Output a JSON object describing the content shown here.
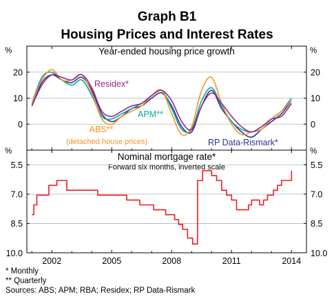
{
  "figure": {
    "title": "Graph B1",
    "subtitle": "Housing Prices and Interest Rates",
    "notes": [
      "*    Monthly",
      "**   Quarterly",
      "Sources: ABS; APM; RBA; Residex; RP Data-Rismark"
    ]
  },
  "chart_data": [
    {
      "type": "line",
      "title": "Year-ended housing price growth",
      "y_unit": "%",
      "ylim": [
        -10,
        30
      ],
      "yticks": [
        0,
        10,
        20
      ],
      "ytick_labels": [
        "0",
        "10",
        "20"
      ],
      "xlim": [
        2000.75,
        2014.75
      ],
      "xticks": [
        2002,
        2005,
        2008,
        2011,
        2014
      ],
      "xtick_labels": [
        "2002",
        "2005",
        "2008",
        "2011",
        "2014"
      ],
      "grid": "horizontal",
      "series": [
        {
          "name": "RP Data-Rismark*",
          "color": "#2e3192",
          "x": [
            2001.0,
            2001.5,
            2002.0,
            2002.5,
            2003.0,
            2003.5,
            2004.0,
            2004.5,
            2005.0,
            2005.5,
            2006.0,
            2006.5,
            2007.0,
            2007.5,
            2008.0,
            2008.5,
            2009.0,
            2009.5,
            2010.0,
            2010.5,
            2011.0,
            2011.5,
            2012.0,
            2012.5,
            2013.0,
            2013.5,
            2014.0
          ],
          "y": [
            7,
            16,
            19,
            17,
            16,
            18,
            13,
            4,
            1,
            3,
            6,
            7,
            10,
            12,
            7,
            -1,
            -3,
            7,
            13,
            6,
            1,
            -3,
            -5,
            -2,
            1,
            4,
            9
          ]
        },
        {
          "name": "APM**",
          "color": "#00a99d",
          "x": [
            2001.0,
            2001.5,
            2002.0,
            2002.5,
            2003.0,
            2003.5,
            2004.0,
            2004.5,
            2005.0,
            2005.5,
            2006.0,
            2006.5,
            2007.0,
            2007.5,
            2008.0,
            2008.5,
            2009.0,
            2009.5,
            2010.0,
            2010.5,
            2011.0,
            2011.5,
            2012.0,
            2012.5,
            2013.0,
            2013.5,
            2014.0
          ],
          "y": [
            8,
            18,
            20,
            17,
            15,
            17,
            11,
            3,
            2,
            4,
            6,
            8,
            11,
            13,
            6,
            -2,
            -2,
            9,
            14,
            7,
            1,
            -2,
            -3,
            -1,
            2,
            5,
            10
          ]
        },
        {
          "name": "ABS**",
          "sublabel": "(detached house prices)",
          "color": "#f7941d",
          "x": [
            2001.0,
            2001.5,
            2002.0,
            2002.5,
            2003.0,
            2003.5,
            2004.0,
            2004.5,
            2005.0,
            2005.5,
            2006.0,
            2006.5,
            2007.0,
            2007.5,
            2008.0,
            2008.5,
            2009.0,
            2009.5,
            2010.0,
            2010.5,
            2011.0,
            2011.5,
            2012.0,
            2012.5,
            2013.0,
            2013.5,
            2014.0
          ],
          "y": [
            8,
            17,
            21,
            17,
            17,
            19,
            12,
            2,
            0,
            3,
            5,
            7,
            11,
            13,
            4,
            -4,
            -1,
            13,
            18,
            8,
            0,
            -4,
            -3,
            -2,
            2,
            5,
            9
          ]
        },
        {
          "name": "Residex*",
          "color": "#92278f",
          "x": [
            2001.0,
            2001.5,
            2002.0,
            2002.5,
            2003.0,
            2003.5,
            2004.0,
            2004.5,
            2005.0,
            2005.5,
            2006.0,
            2006.5,
            2007.0,
            2007.5,
            2008.0,
            2008.5,
            2009.0,
            2009.5,
            2010.0,
            2010.5,
            2011.0,
            2011.5,
            2012.0,
            2012.5,
            2013.0,
            2013.5,
            2014.0
          ],
          "y": [
            7,
            15,
            19,
            18,
            17,
            19,
            14,
            5,
            3,
            5,
            7,
            8,
            11,
            13,
            9,
            1,
            -2,
            7,
            12,
            8,
            3,
            -1,
            -3,
            -1,
            2,
            3,
            8
          ]
        }
      ]
    },
    {
      "type": "line",
      "title": "Nominal mortgage rate*",
      "subtitle": "Forward six months, inverted scale",
      "y_unit": "%",
      "y_inverted": true,
      "ylim": [
        10.0,
        4.75
      ],
      "yticks": [
        5.5,
        7.0,
        8.5,
        10.0
      ],
      "ytick_labels": [
        "5.5",
        "7.0",
        "8.5",
        "10.0"
      ],
      "xlim": [
        2000.75,
        2014.75
      ],
      "xticks": [
        2002,
        2005,
        2008,
        2011,
        2014
      ],
      "xtick_labels": [
        "2002",
        "2005",
        "2008",
        "2011",
        "2014"
      ],
      "grid": "horizontal",
      "series": [
        {
          "name": "",
          "color": "#ed1c24",
          "step": true,
          "x": [
            2001.0,
            2001.1,
            2001.25,
            2001.6,
            2001.85,
            2002.25,
            2002.45,
            2002.75,
            2003.4,
            2003.9,
            2004.3,
            2005.5,
            2005.75,
            2006.1,
            2006.4,
            2006.7,
            2007.1,
            2007.4,
            2007.7,
            2007.9,
            2008.15,
            2008.35,
            2008.55,
            2008.8,
            2009.05,
            2009.3,
            2009.55,
            2009.8,
            2010.0,
            2010.25,
            2010.5,
            2010.75,
            2011.0,
            2011.25,
            2011.6,
            2011.85,
            2012.0,
            2012.2,
            2012.4,
            2012.6,
            2012.8,
            2013.1,
            2013.3,
            2013.5,
            2013.75,
            2014.0
          ],
          "y": [
            8.05,
            7.55,
            7.05,
            7.05,
            6.55,
            6.3,
            6.3,
            6.8,
            6.8,
            6.8,
            7.05,
            7.05,
            7.3,
            7.3,
            7.55,
            7.55,
            7.8,
            7.8,
            8.05,
            8.05,
            8.3,
            8.55,
            8.8,
            9.25,
            9.55,
            6.3,
            5.8,
            5.8,
            6.05,
            6.3,
            6.8,
            7.05,
            7.3,
            7.8,
            7.8,
            7.55,
            7.3,
            7.3,
            7.55,
            7.3,
            7.05,
            6.8,
            6.55,
            6.3,
            6.3,
            5.8
          ]
        }
      ]
    }
  ]
}
